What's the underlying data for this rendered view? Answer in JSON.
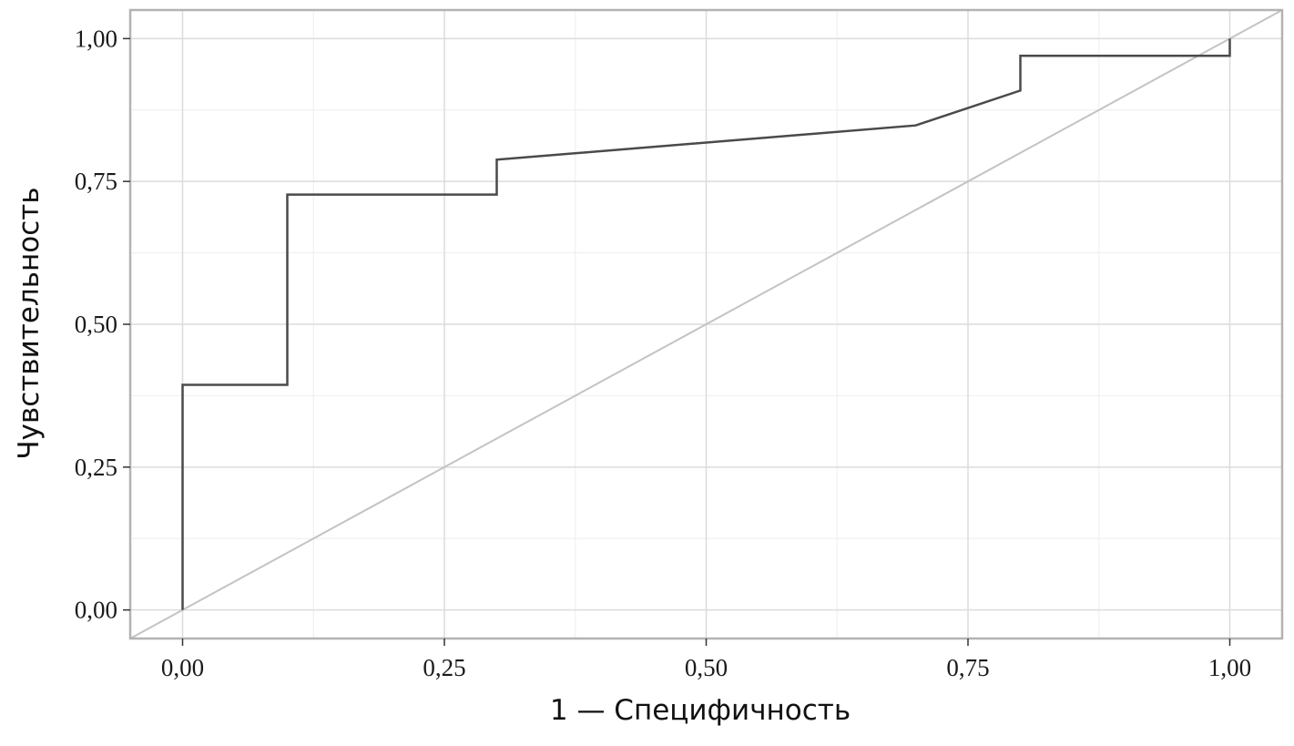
{
  "chart_data": {
    "type": "line",
    "xlabel": "1 — Специфичность",
    "ylabel": "Чувствительность",
    "xlim": [
      -0.05,
      1.05
    ],
    "ylim": [
      -0.05,
      1.05
    ],
    "x_ticks": [
      0,
      0.25,
      0.5,
      0.75,
      1.0
    ],
    "y_ticks": [
      0,
      0.25,
      0.5,
      0.75,
      1.0
    ],
    "x_tick_labels": [
      "0,00",
      "0,25",
      "0,50",
      "0,75",
      "1,00"
    ],
    "y_tick_labels": [
      "0,00",
      "0,25",
      "0,50",
      "0,75",
      "1,00"
    ],
    "grid": true,
    "series": [
      {
        "x": [
          0,
          0,
          0.1,
          0.1,
          0.3,
          0.3,
          0.7,
          0.8,
          0.8,
          1.0,
          1.0
        ],
        "y": [
          0,
          0.394,
          0.394,
          0.727,
          0.727,
          0.788,
          0.848,
          0.909,
          0.97,
          0.97,
          1.0
        ],
        "color": "#4a4a4a"
      },
      {
        "x": [
          -0.05,
          1.05
        ],
        "y": [
          -0.05,
          1.05
        ],
        "color": "#c3c3c3"
      }
    ],
    "colors": {
      "panel_border": "#b3b3b3",
      "grid_major": "#dcdcdc",
      "grid_minor": "#eeeeee"
    }
  }
}
